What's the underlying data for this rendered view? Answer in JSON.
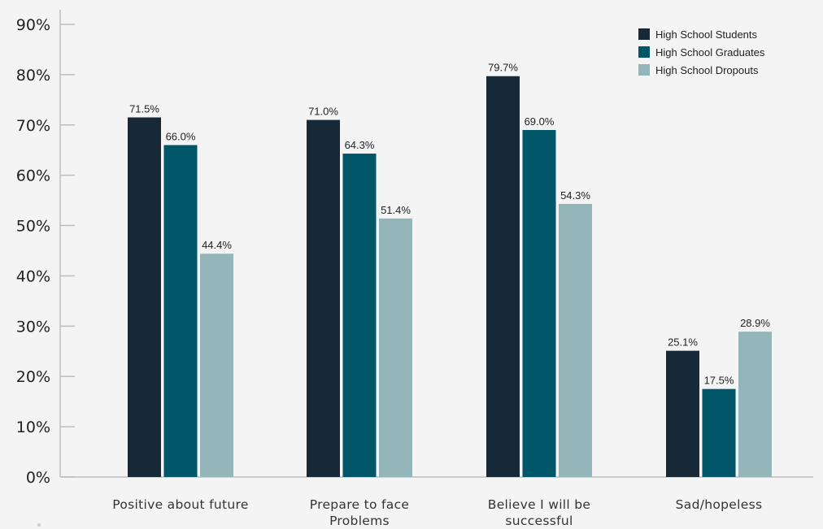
{
  "colors": {
    "background": "#f4f4f4",
    "axis": "#bdbdbd",
    "text": "#222222"
  },
  "chart_data": {
    "type": "bar",
    "categories": [
      [
        "Positive about future"
      ],
      [
        "Prepare to face",
        "Problems"
      ],
      [
        "Believe I will be",
        "successful"
      ],
      [
        "Sad/hopeless"
      ]
    ],
    "series": [
      {
        "name": "High School Students",
        "color": "#172936",
        "values": [
          71.5,
          71.0,
          79.7,
          25.1
        ],
        "labels": [
          "71.5%",
          "71.0%",
          "79.7%",
          "25.1%"
        ]
      },
      {
        "name": "High School Graduates",
        "color": "#015669",
        "values": [
          66.0,
          64.3,
          69.0,
          17.5
        ],
        "labels": [
          "66.0%",
          "64.3%",
          "69.0%",
          "17.5%"
        ]
      },
      {
        "name": "High School Dropouts",
        "color": "#94b5b9",
        "values": [
          44.4,
          51.4,
          54.3,
          28.9
        ],
        "labels": [
          "44.4%",
          "51.4%",
          "54.3%",
          "28.9%"
        ]
      }
    ],
    "y_ticks": [
      "0%",
      "10%",
      "20%",
      "30%",
      "40%",
      "50%",
      "60%",
      "70%",
      "80%",
      "90%"
    ],
    "ylim": [
      0,
      90
    ],
    "title": "",
    "xlabel": "",
    "ylabel": "",
    "legend_position": "top-right",
    "grid": false
  }
}
